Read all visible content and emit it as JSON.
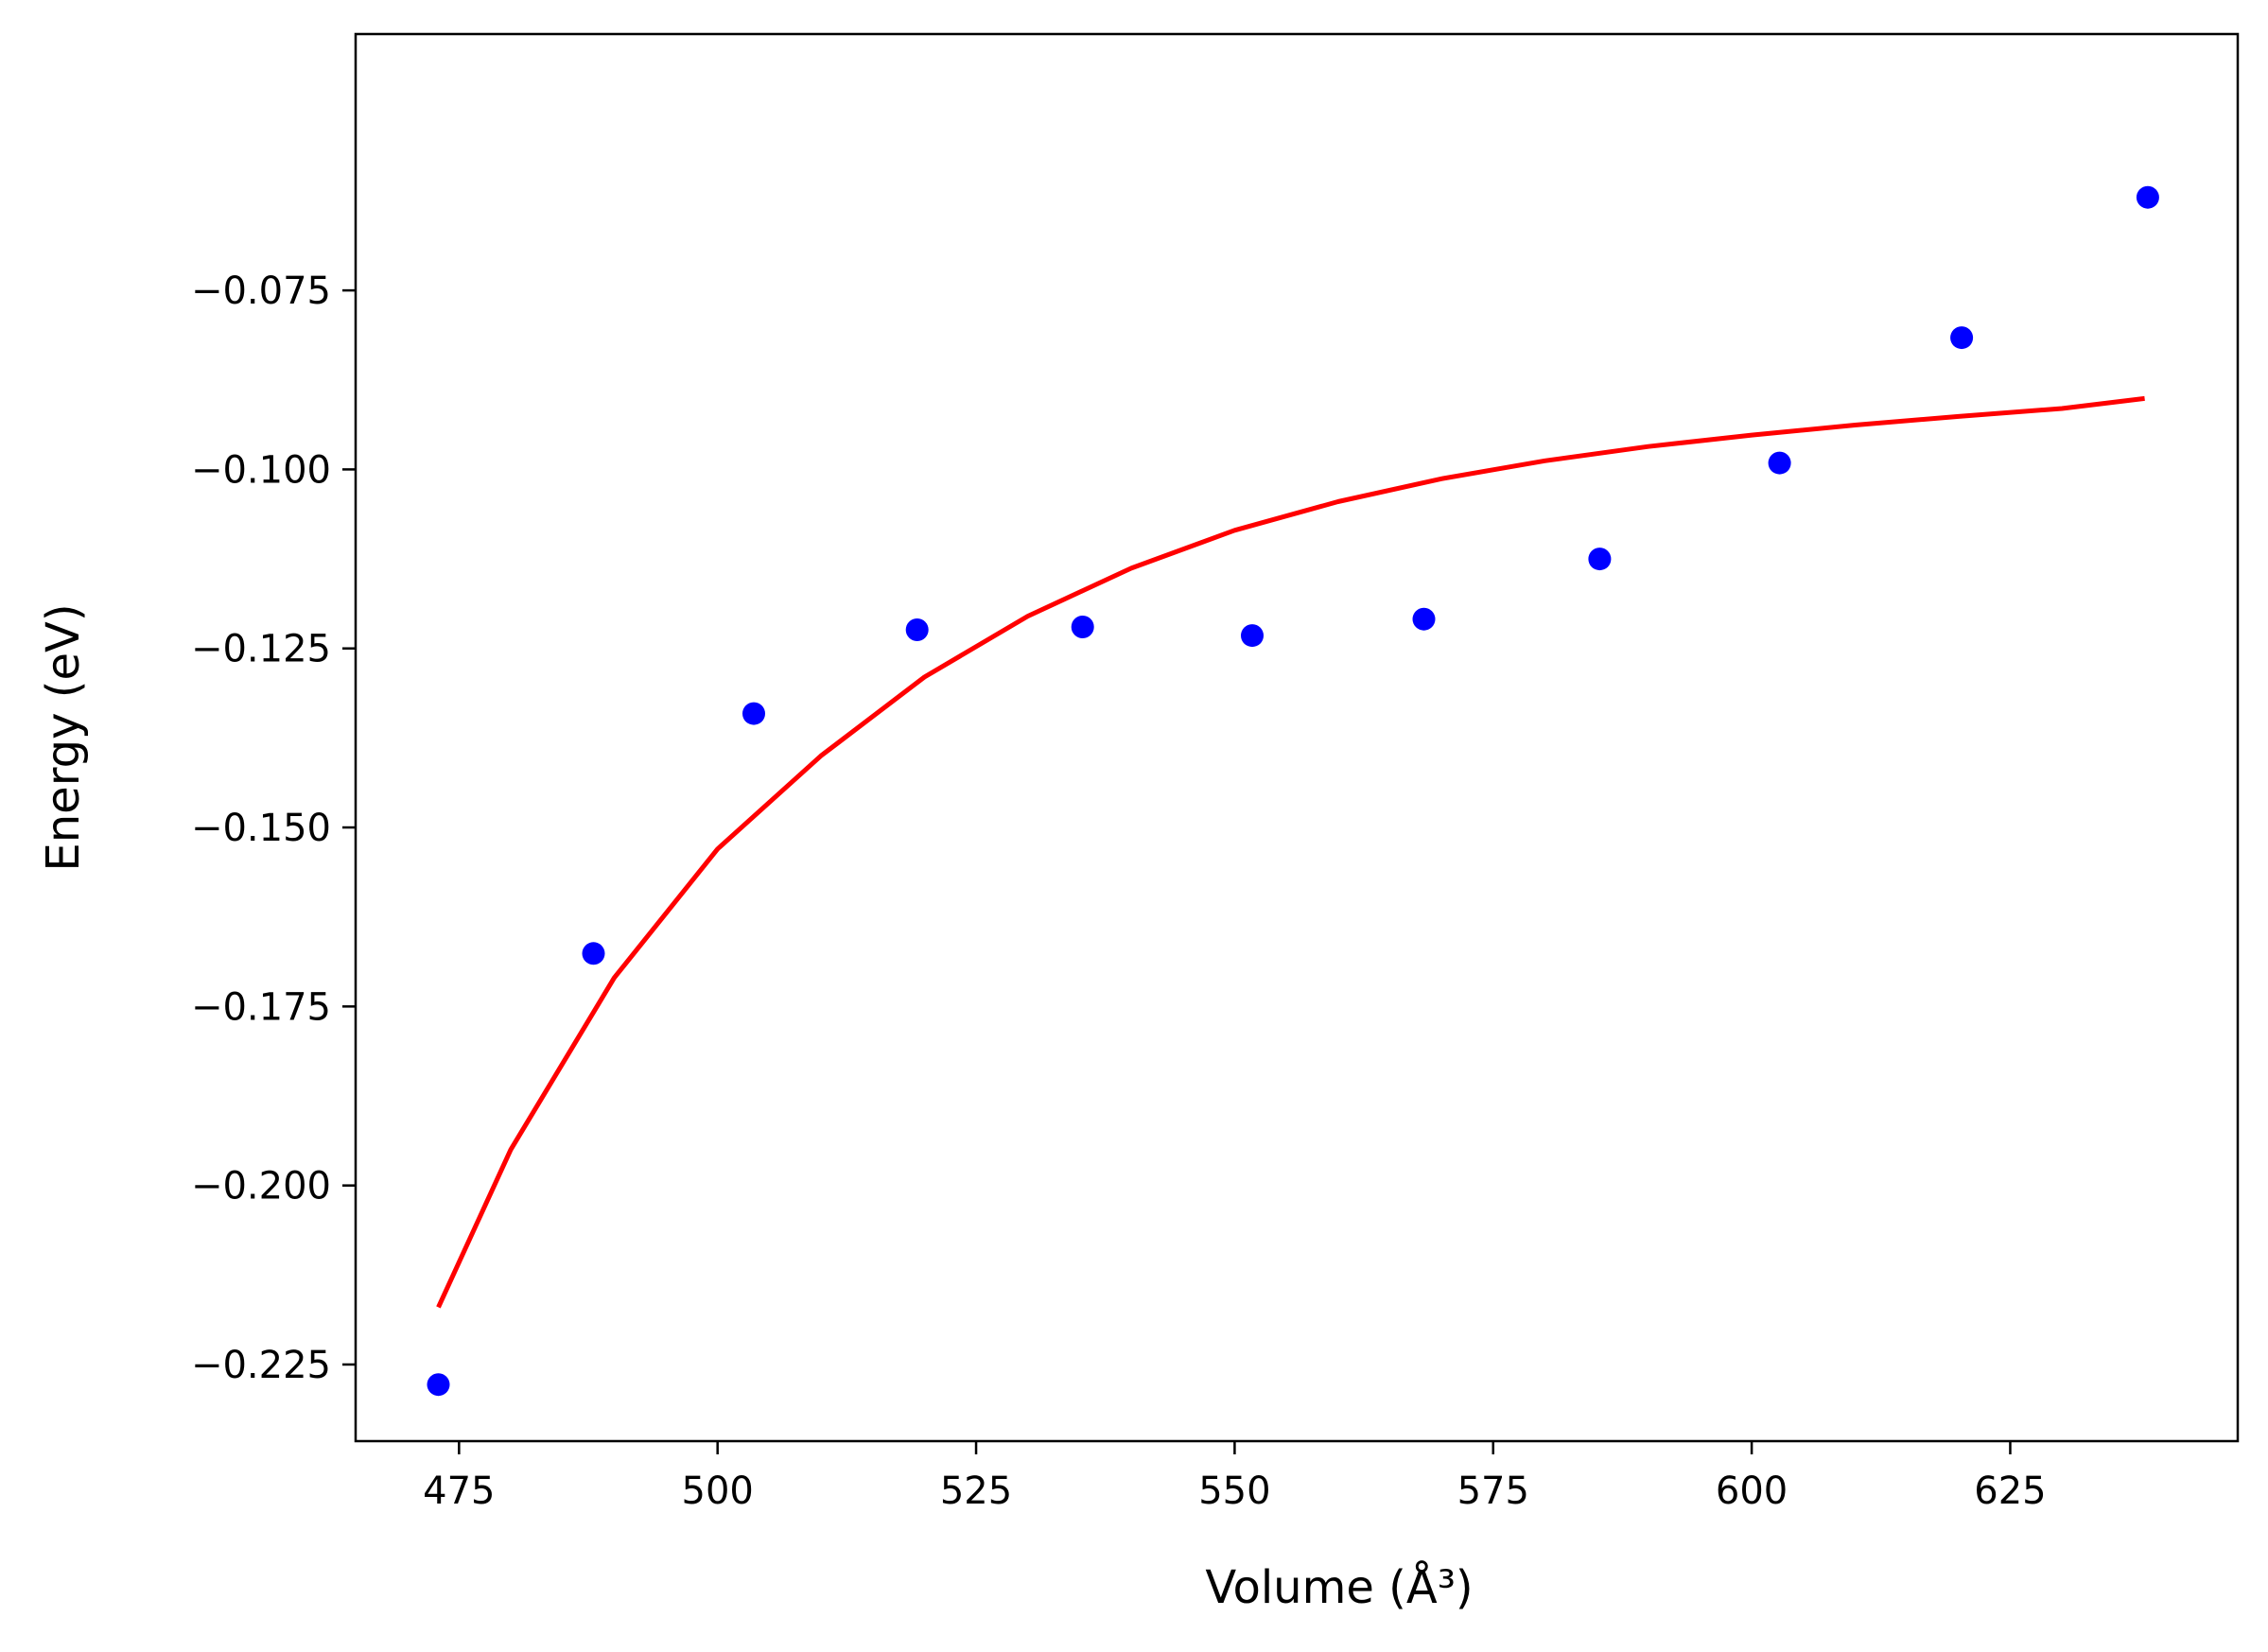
{
  "chart_data": {
    "type": "scatter",
    "title": "",
    "xlabel": "Volume (Å³)",
    "ylabel": "Energy (eV)",
    "xlim": [
      465,
      647
    ],
    "ylim": [
      -0.2357,
      -0.0392
    ],
    "xticks": [
      475,
      500,
      525,
      550,
      575,
      600,
      625
    ],
    "yticks": [
      -0.225,
      -0.2,
      -0.175,
      -0.15,
      -0.125,
      -0.1,
      -0.075
    ],
    "xtick_labels": [
      "475",
      "500",
      "525",
      "550",
      "575",
      "600",
      "625"
    ],
    "ytick_labels": [
      "−0.225",
      "−0.200",
      "−0.175",
      "−0.150",
      "−0.125",
      "−0.100",
      "−0.075"
    ],
    "grid": false,
    "legend": "none",
    "series": [
      {
        "kind": "scatter",
        "color": "#0000ff",
        "x": [
          473.0,
          488.0,
          503.5,
          519.3,
          535.3,
          551.7,
          568.3,
          585.3,
          602.7,
          620.3,
          638.3
        ],
        "y": [
          -0.2278,
          -0.1676,
          -0.1341,
          -0.1224,
          -0.122,
          -0.1232,
          -0.1209,
          -0.1125,
          -0.0991,
          -0.0816,
          -0.062
        ]
      },
      {
        "kind": "line",
        "color": "#ff0000",
        "x": [
          473,
          480,
          490,
          500,
          510,
          520,
          530,
          540,
          550,
          560,
          570,
          580,
          590,
          600,
          610,
          620,
          630,
          638
        ],
        "y": [
          -0.217,
          -0.195,
          -0.171,
          -0.153,
          -0.14,
          -0.129,
          -0.1205,
          -0.1138,
          -0.1085,
          -0.1045,
          -0.1013,
          -0.0988,
          -0.0968,
          -0.0952,
          -0.0938,
          -0.0926,
          -0.0915,
          -0.0901
        ]
      }
    ]
  }
}
